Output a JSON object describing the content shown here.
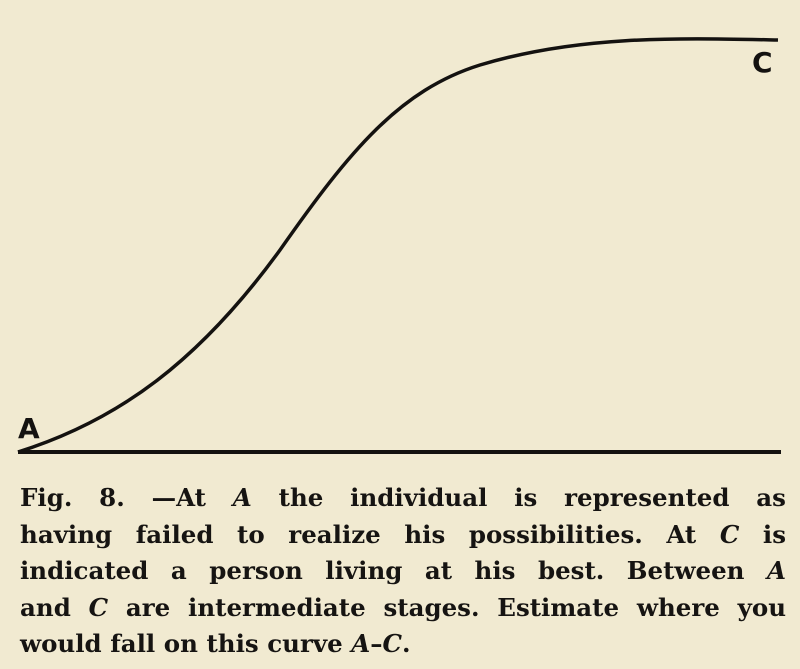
{
  "figure": {
    "point_start_label": "A",
    "point_end_label": "C",
    "curve_type": "s-curve",
    "line_color": "#141210",
    "background_color": "#f1ead1"
  },
  "caption": {
    "lines": [
      "Fig. 8. —At A the individual is represented as",
      "having failed to realize his possibilities. At C is",
      "indicated a person living at his best. Between A",
      "and C are intermediate stages. Estimate where you",
      "would fall on this curve A–C."
    ]
  }
}
